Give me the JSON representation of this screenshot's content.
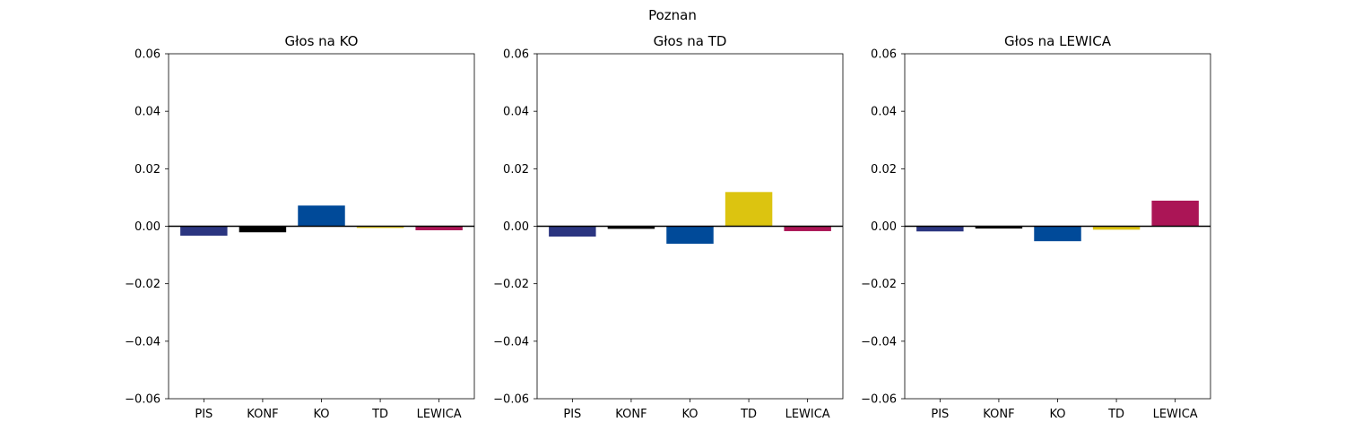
{
  "figure": {
    "suptitle": "Poznan"
  },
  "colors": {
    "PIS": "#2b3580",
    "KONF": "#000000",
    "KO": "#004a99",
    "TD": "#dcc410",
    "LEWICA": "#ab1556"
  },
  "chart_data": [
    {
      "type": "bar",
      "title": "Głos na KO",
      "categories": [
        "PIS",
        "KONF",
        "KO",
        "TD",
        "LEWICA"
      ],
      "values": [
        -0.0033,
        -0.0021,
        0.0072,
        -0.0006,
        -0.0014
      ],
      "ylim": [
        -0.06,
        0.06
      ],
      "yticks": [
        "−0.06",
        "−0.04",
        "−0.02",
        "0.00",
        "0.02",
        "0.04",
        "0.06"
      ],
      "ytick_values": [
        -0.06,
        -0.04,
        -0.02,
        0.0,
        0.02,
        0.04,
        0.06
      ],
      "xlabel": "",
      "ylabel": ""
    },
    {
      "type": "bar",
      "title": "Głos na TD",
      "categories": [
        "PIS",
        "KONF",
        "KO",
        "TD",
        "LEWICA"
      ],
      "values": [
        -0.0036,
        -0.0009,
        -0.0061,
        0.0119,
        -0.0017
      ],
      "ylim": [
        -0.06,
        0.06
      ],
      "yticks": [
        "−0.06",
        "−0.04",
        "−0.02",
        "0.00",
        "0.02",
        "0.04",
        "0.06"
      ],
      "ytick_values": [
        -0.06,
        -0.04,
        -0.02,
        0.0,
        0.02,
        0.04,
        0.06
      ],
      "xlabel": "",
      "ylabel": ""
    },
    {
      "type": "bar",
      "title": "Głos na LEWICA",
      "categories": [
        "PIS",
        "KONF",
        "KO",
        "TD",
        "LEWICA"
      ],
      "values": [
        -0.0018,
        -0.0008,
        -0.0052,
        -0.0012,
        0.0089
      ],
      "ylim": [
        -0.06,
        0.06
      ],
      "yticks": [
        "−0.06",
        "−0.04",
        "−0.02",
        "0.00",
        "0.02",
        "0.04",
        "0.06"
      ],
      "ytick_values": [
        -0.06,
        -0.04,
        -0.02,
        0.0,
        0.02,
        0.04,
        0.06
      ],
      "xlabel": "",
      "ylabel": ""
    }
  ]
}
